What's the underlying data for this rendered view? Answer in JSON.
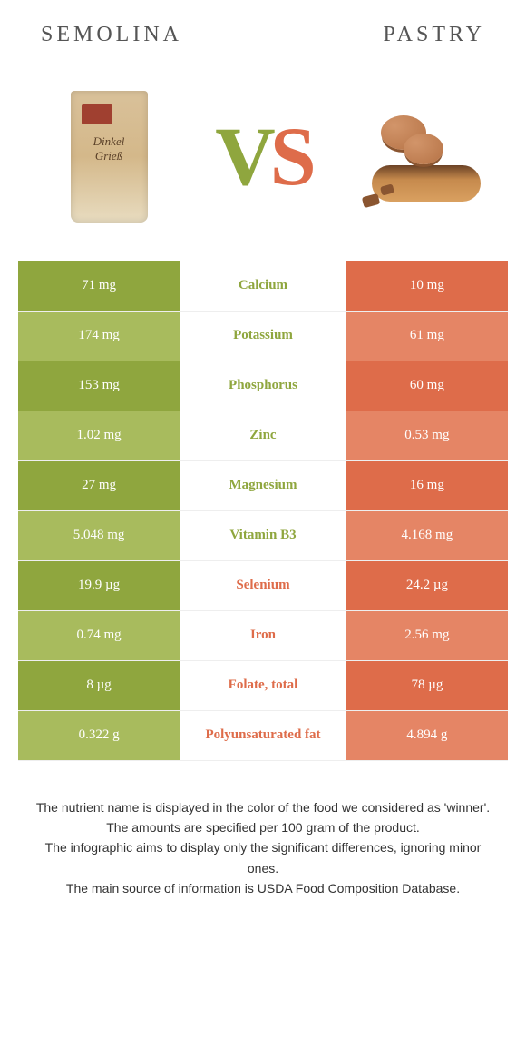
{
  "header": {
    "left_title": "SEMOLINA",
    "right_title": "PASTRY",
    "vs_v": "V",
    "vs_s": "S"
  },
  "colors": {
    "green": "#8fa63e",
    "green_light": "#a8bb5d",
    "orange": "#de6c4a",
    "orange_light": "#e58565",
    "background": "#ffffff"
  },
  "table": {
    "rows": [
      {
        "left": "71 mg",
        "label": "Calcium",
        "right": "10 mg",
        "winner": "left"
      },
      {
        "left": "174 mg",
        "label": "Potassium",
        "right": "61 mg",
        "winner": "left"
      },
      {
        "left": "153 mg",
        "label": "Phosphorus",
        "right": "60 mg",
        "winner": "left"
      },
      {
        "left": "1.02 mg",
        "label": "Zinc",
        "right": "0.53 mg",
        "winner": "left"
      },
      {
        "left": "27 mg",
        "label": "Magnesium",
        "right": "16 mg",
        "winner": "left"
      },
      {
        "left": "5.048 mg",
        "label": "Vitamin B3",
        "right": "4.168 mg",
        "winner": "left"
      },
      {
        "left": "19.9 µg",
        "label": "Selenium",
        "right": "24.2 µg",
        "winner": "right"
      },
      {
        "left": "0.74 mg",
        "label": "Iron",
        "right": "2.56 mg",
        "winner": "right"
      },
      {
        "left": "8 µg",
        "label": "Folate, total",
        "right": "78 µg",
        "winner": "right"
      },
      {
        "left": "0.322 g",
        "label": "Polyunsaturated fat",
        "right": "4.894 g",
        "winner": "right"
      }
    ]
  },
  "footer": {
    "line1": "The nutrient name is displayed in the color of the food we considered as 'winner'.",
    "line2": "The amounts are specified per 100 gram of the product.",
    "line3": "The infographic aims to display only the significant differences, ignoring minor ones.",
    "line4": "The main source of information is USDA Food Composition Database."
  }
}
